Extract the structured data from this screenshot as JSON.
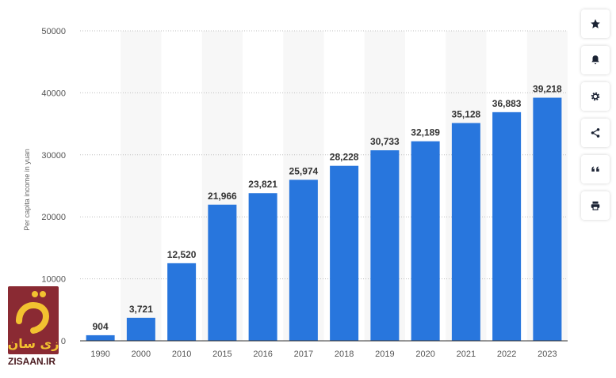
{
  "chart_data": {
    "type": "bar",
    "title": "",
    "xlabel": "",
    "ylabel": "Per capita income in yuan",
    "categories": [
      "1990",
      "2000",
      "2010",
      "2015",
      "2016",
      "2017",
      "2018",
      "2019",
      "2020",
      "2021",
      "2022",
      "2023"
    ],
    "values": [
      904,
      3721,
      12520,
      21966,
      23821,
      25974,
      28228,
      30733,
      32189,
      35128,
      36883,
      39218
    ],
    "value_labels": [
      "904",
      "3,721",
      "12,520",
      "21,966",
      "23,821",
      "25,974",
      "28,228",
      "30,733",
      "32,189",
      "35,128",
      "36,883",
      "39,218"
    ],
    "ylim": [
      0,
      50000
    ],
    "yticks": [
      0,
      10000,
      20000,
      30000,
      40000,
      50000
    ],
    "ytick_labels": [
      "0",
      "10000",
      "20000",
      "30000",
      "40000",
      "50000"
    ],
    "grid": true,
    "bar_color": "#2876dd"
  },
  "toolbar": {
    "buttons": [
      {
        "icon": "star-icon"
      },
      {
        "icon": "bell-icon"
      },
      {
        "icon": "gear-icon"
      },
      {
        "icon": "share-icon"
      },
      {
        "icon": "quote-icon"
      },
      {
        "icon": "print-icon"
      }
    ]
  },
  "watermark": {
    "logo_text": "زی سان",
    "site": "ZISAAN.IR",
    "color": "#8a2a33"
  }
}
